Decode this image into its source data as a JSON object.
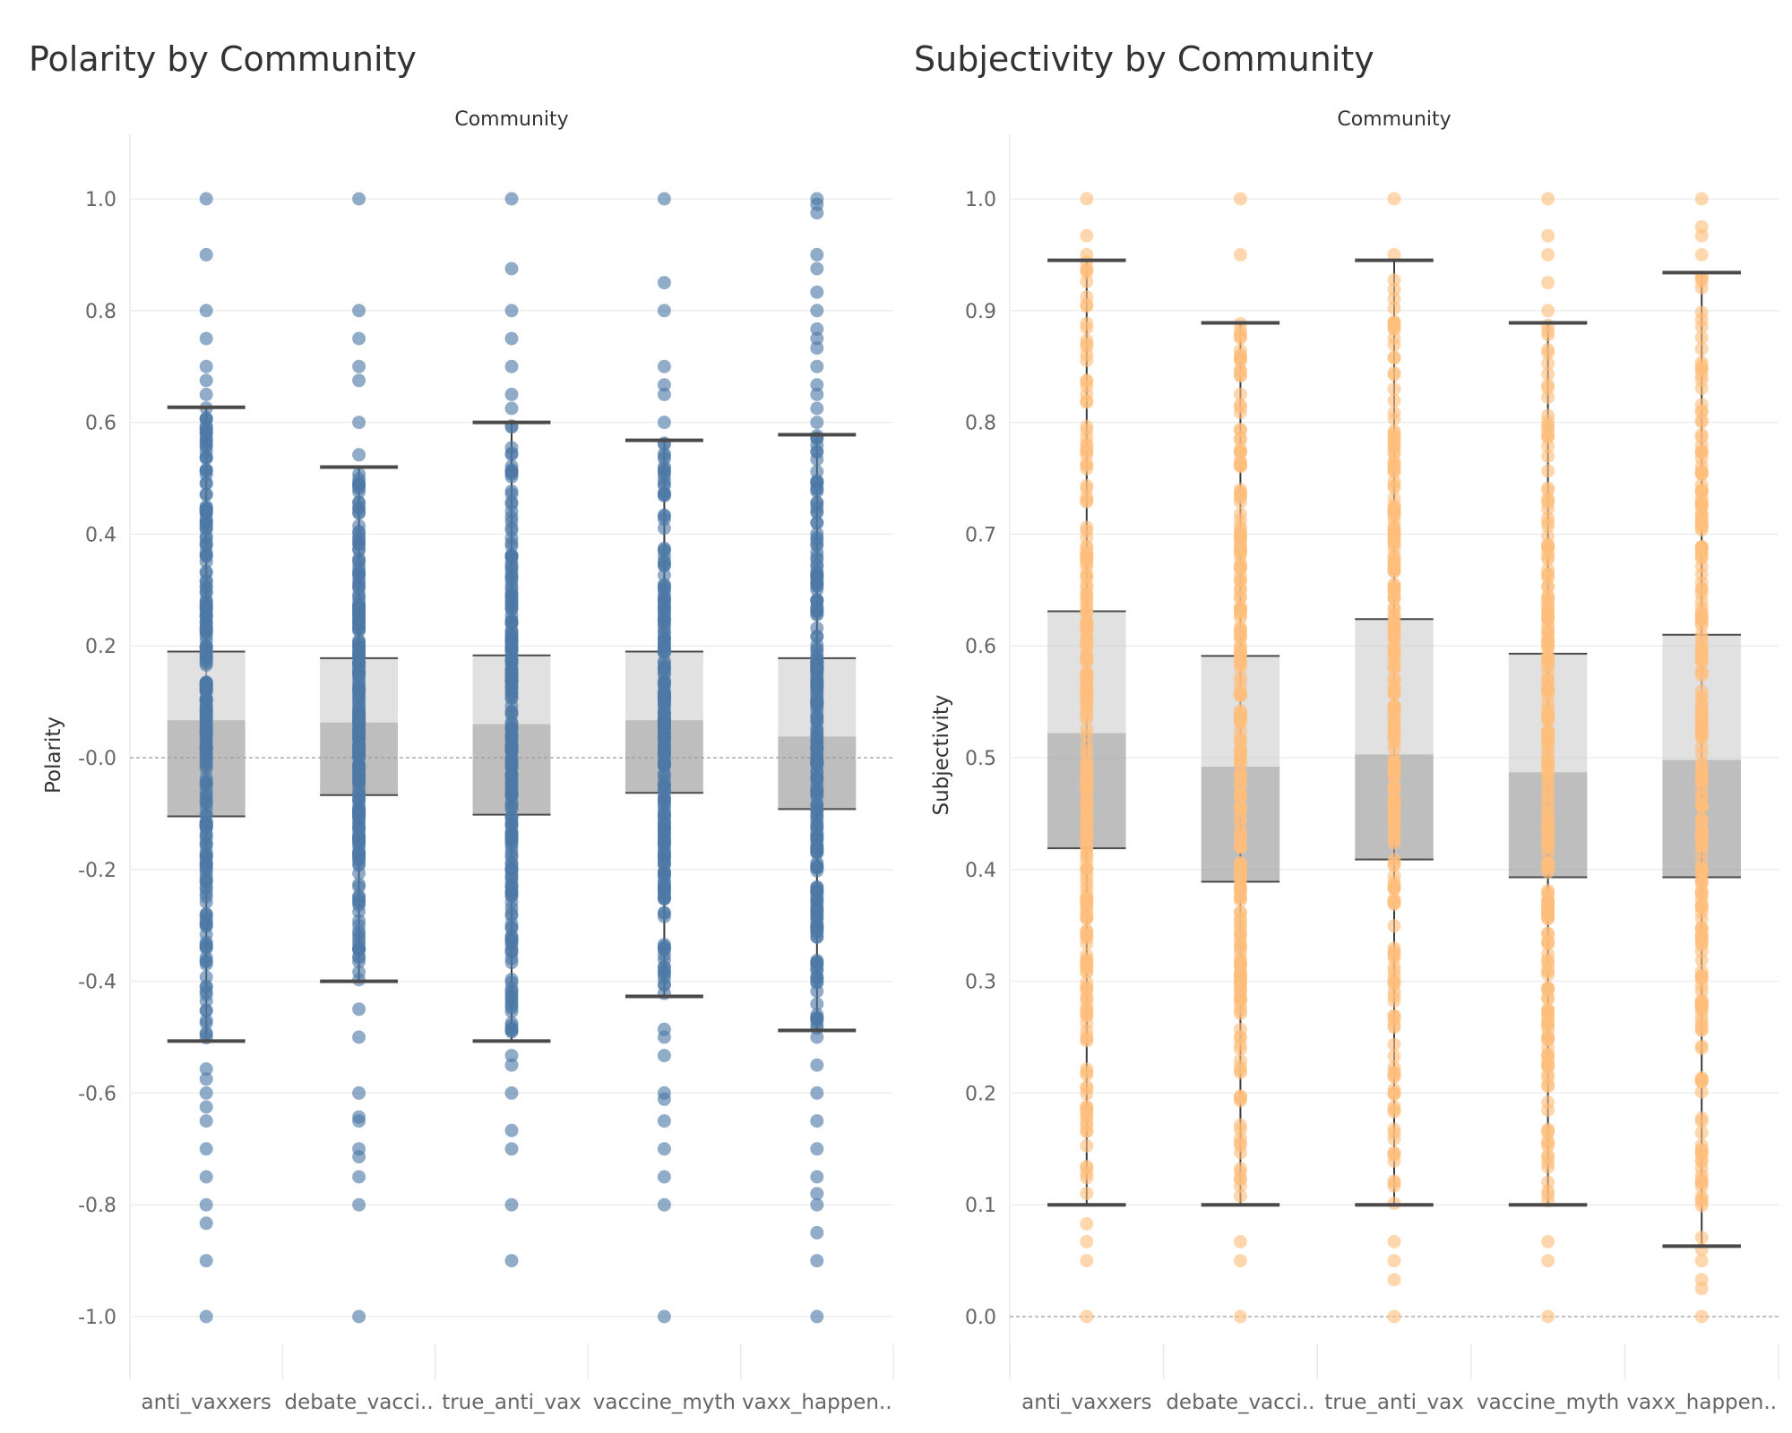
{
  "chart_data": [
    {
      "type": "boxplot",
      "title": "Polarity by Community",
      "column_header": "Community",
      "ylabel": "Polarity",
      "ylim": [
        -1.12,
        1.12
      ],
      "yticks": [
        1.0,
        0.8,
        0.6,
        0.4,
        0.2,
        0.0,
        -0.2,
        -0.4,
        -0.6,
        -0.8,
        -1.0
      ],
      "ytick_labels": [
        "1.0",
        "0.8",
        "0.6",
        "0.4",
        "0.2",
        "-0.0",
        "-0.2",
        "-0.4",
        "-0.6",
        "-0.8",
        "-1.0"
      ],
      "reference_line": 0.0,
      "point_color": "#4e79a7",
      "categories": [
        "anti_vaxxers",
        "debate_vacci..",
        "true_anti_vax",
        "vaccine_myth",
        "vaxx_happen.."
      ],
      "boxes": [
        {
          "whisker_low": -0.507,
          "q1": -0.105,
          "median": 0.067,
          "q3": 0.19,
          "whisker_high": 0.627
        },
        {
          "whisker_low": -0.4,
          "q1": -0.067,
          "median": 0.063,
          "q3": 0.178,
          "whisker_high": 0.52
        },
        {
          "whisker_low": -0.507,
          "q1": -0.102,
          "median": 0.06,
          "q3": 0.183,
          "whisker_high": 0.6
        },
        {
          "whisker_low": -0.427,
          "q1": -0.063,
          "median": 0.067,
          "q3": 0.19,
          "whisker_high": 0.568
        },
        {
          "whisker_low": -0.488,
          "q1": -0.092,
          "median": 0.038,
          "q3": 0.178,
          "whisker_high": 0.578
        }
      ],
      "outliers": [
        [
          1.0,
          0.9,
          0.8,
          0.75,
          0.7,
          0.675,
          0.65,
          -0.557,
          -0.575,
          -0.6,
          -0.625,
          -0.65,
          -0.7,
          -0.75,
          -0.8,
          -0.833,
          -0.9,
          -1.0
        ],
        [
          1.0,
          0.8,
          0.75,
          0.7,
          0.675,
          0.6,
          0.542,
          -0.45,
          -0.5,
          -0.6,
          -0.643,
          -0.65,
          -0.7,
          -0.714,
          -0.75,
          -0.8,
          -1.0
        ],
        [
          1.0,
          0.875,
          0.8,
          0.75,
          0.7,
          0.65,
          0.625,
          -0.533,
          -0.55,
          -0.6,
          -0.667,
          -0.7,
          -0.8,
          -0.9
        ],
        [
          1.0,
          0.85,
          0.8,
          0.7,
          0.667,
          0.65,
          0.6,
          -0.486,
          -0.5,
          -0.533,
          -0.6,
          -0.611,
          -0.65,
          -0.7,
          -0.75,
          -0.8,
          -1.0
        ],
        [
          1.0,
          0.99,
          0.975,
          0.9,
          0.875,
          0.833,
          0.8,
          0.767,
          0.75,
          0.733,
          0.7,
          0.667,
          0.65,
          0.625,
          0.6,
          -0.5,
          -0.55,
          -0.6,
          -0.65,
          -0.7,
          -0.75,
          -0.78,
          -0.8,
          -0.85,
          -0.9,
          -1.0
        ]
      ]
    },
    {
      "type": "boxplot",
      "title": "Subjectivity by Community",
      "column_header": "Community",
      "ylabel": "Subjectivity",
      "ylim": [
        -0.06,
        1.06
      ],
      "yticks": [
        1.0,
        0.9,
        0.8,
        0.7,
        0.6,
        0.5,
        0.4,
        0.3,
        0.2,
        0.1,
        0.0
      ],
      "ytick_labels": [
        "1.0",
        "0.9",
        "0.8",
        "0.7",
        "0.6",
        "0.5",
        "0.4",
        "0.3",
        "0.2",
        "0.1",
        "0.0"
      ],
      "reference_line": 0.0,
      "point_color": "#ffbe7d",
      "categories": [
        "anti_vaxxers",
        "debate_vacci..",
        "true_anti_vax",
        "vaccine_myth",
        "vaxx_happen.."
      ],
      "boxes": [
        {
          "whisker_low": 0.1,
          "q1": 0.419,
          "median": 0.522,
          "q3": 0.631,
          "whisker_high": 0.945
        },
        {
          "whisker_low": 0.1,
          "q1": 0.389,
          "median": 0.492,
          "q3": 0.591,
          "whisker_high": 0.889
        },
        {
          "whisker_low": 0.1,
          "q1": 0.409,
          "median": 0.503,
          "q3": 0.624,
          "whisker_high": 0.945
        },
        {
          "whisker_low": 0.1,
          "q1": 0.393,
          "median": 0.487,
          "q3": 0.593,
          "whisker_high": 0.889
        },
        {
          "whisker_low": 0.063,
          "q1": 0.393,
          "median": 0.498,
          "q3": 0.61,
          "whisker_high": 0.934
        }
      ],
      "outliers": [
        [
          1.0,
          0.967,
          0.95,
          0.083,
          0.067,
          0.05,
          0.0
        ],
        [
          1.0,
          0.95,
          0.067,
          0.05,
          0.0
        ],
        [
          1.0,
          0.95,
          0.067,
          0.05,
          0.033,
          0.0
        ],
        [
          1.0,
          0.967,
          0.95,
          0.925,
          0.9,
          0.067,
          0.05,
          0.0
        ],
        [
          1.0,
          0.975,
          0.967,
          0.95,
          0.06,
          0.05,
          0.033,
          0.025,
          0.0
        ]
      ]
    }
  ]
}
